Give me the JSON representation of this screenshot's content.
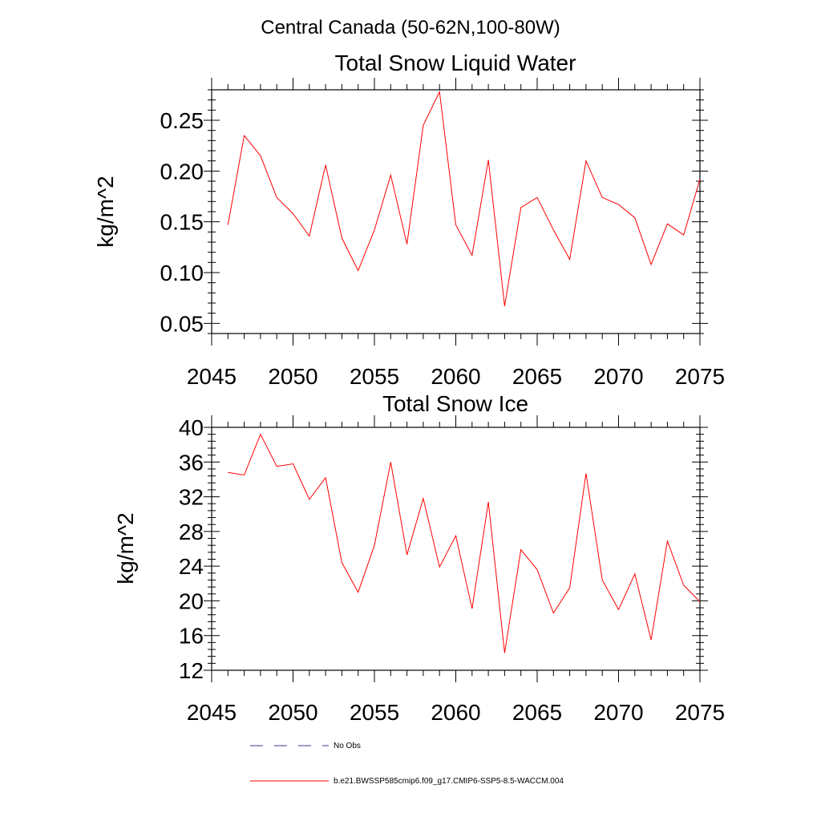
{
  "suptitle": "Central Canada (50-62N,100-80W)",
  "chart_data": [
    {
      "type": "line",
      "title": "Total Snow Liquid Water",
      "ylabel": "kg/m^2",
      "xlabel": "",
      "xlim": [
        2045,
        2075
      ],
      "ylim": [
        0.04,
        0.28
      ],
      "xticks": [
        2045,
        2050,
        2055,
        2060,
        2065,
        2070,
        2075
      ],
      "xtick_labels": [
        "2045",
        "2050",
        "2055",
        "2060",
        "2065",
        "2070",
        "2075"
      ],
      "yticks": [
        0.05,
        0.1,
        0.15,
        0.2,
        0.25
      ],
      "ytick_labels": [
        "0.05",
        "0.10",
        "0.15",
        "0.20",
        "0.25"
      ],
      "series": [
        {
          "name": "b.e21.BWSSP585cmip6.f09_g17.CMIP6-SSP5-8.5-WACCM.004",
          "color": "#ff0000",
          "x": [
            2046,
            2047,
            2048,
            2049,
            2050,
            2051,
            2052,
            2053,
            2054,
            2055,
            2056,
            2057,
            2058,
            2059,
            2060,
            2061,
            2062,
            2063,
            2064,
            2065,
            2066,
            2067,
            2068,
            2069,
            2070,
            2071,
            2072,
            2073,
            2074,
            2075
          ],
          "values": [
            0.147,
            0.235,
            0.215,
            0.174,
            0.158,
            0.136,
            0.206,
            0.134,
            0.102,
            0.142,
            0.196,
            0.128,
            0.245,
            0.278,
            0.147,
            0.117,
            0.211,
            0.067,
            0.164,
            0.174,
            0.142,
            0.113,
            0.21,
            0.174,
            0.167,
            0.154,
            0.108,
            0.148,
            0.137,
            0.192
          ]
        }
      ]
    },
    {
      "type": "line",
      "title": "Total Snow Ice",
      "ylabel": "kg/m^2",
      "xlabel": "",
      "xlim": [
        2045,
        2075
      ],
      "ylim": [
        12,
        40
      ],
      "xticks": [
        2045,
        2050,
        2055,
        2060,
        2065,
        2070,
        2075
      ],
      "xtick_labels": [
        "2045",
        "2050",
        "2055",
        "2060",
        "2065",
        "2070",
        "2075"
      ],
      "yticks": [
        12,
        16,
        20,
        24,
        28,
        32,
        36,
        40
      ],
      "ytick_labels": [
        "12",
        "16",
        "20",
        "24",
        "28",
        "32",
        "36",
        "40"
      ],
      "series": [
        {
          "name": "b.e21.BWSSP585cmip6.f09_g17.CMIP6-SSP5-8.5-WACCM.004",
          "color": "#ff0000",
          "x": [
            2046,
            2047,
            2048,
            2049,
            2050,
            2051,
            2052,
            2053,
            2054,
            2055,
            2056,
            2057,
            2058,
            2059,
            2060,
            2061,
            2062,
            2063,
            2064,
            2065,
            2066,
            2067,
            2068,
            2069,
            2070,
            2071,
            2072,
            2073,
            2074,
            2075
          ],
          "values": [
            34.8,
            34.5,
            39.2,
            35.5,
            35.8,
            31.7,
            34.2,
            24.4,
            21.0,
            26.4,
            36.0,
            25.3,
            31.8,
            23.9,
            27.5,
            19.1,
            31.4,
            14.0,
            25.9,
            23.6,
            18.6,
            21.5,
            34.7,
            22.4,
            19.0,
            23.1,
            15.5,
            26.9,
            21.8,
            19.9
          ]
        }
      ]
    }
  ],
  "legend": [
    {
      "label": "No Obs",
      "style": "dashed",
      "color": "#3b3b8f"
    },
    {
      "label": "b.e21.BWSSP585cmip6.f09_g17.CMIP6-SSP5-8.5-WACCM.004",
      "style": "solid",
      "color": "#ff0000"
    }
  ]
}
